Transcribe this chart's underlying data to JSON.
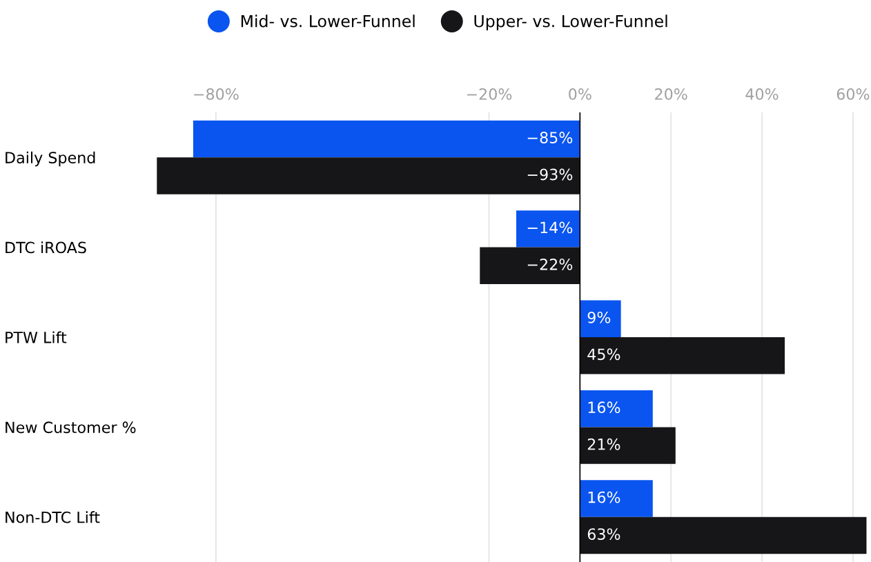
{
  "chart_data": {
    "type": "bar",
    "orientation": "horizontal",
    "categories": [
      "Daily Spend",
      "DTC iROAS",
      "PTW Lift",
      "New Customer %",
      "Non-DTC Lift"
    ],
    "series": [
      {
        "name": "Mid- vs. Lower-Funnel",
        "color": "#0a55f0",
        "values": [
          -85,
          -14,
          9,
          16,
          16
        ],
        "value_labels": [
          "−85%",
          "−14%",
          "9%",
          "16%",
          "16%"
        ]
      },
      {
        "name": "Upper- vs. Lower-Funnel",
        "color": "#161618",
        "values": [
          -93,
          -22,
          45,
          21,
          63
        ],
        "value_labels": [
          "−93%",
          "−22%",
          "45%",
          "21%",
          "63%"
        ]
      }
    ],
    "xlim": [
      -93,
      63
    ],
    "xticks": [
      {
        "value": -80,
        "label": "−80%"
      },
      {
        "value": -20,
        "label": "−20%"
      },
      {
        "value": 0,
        "label": "0%"
      },
      {
        "value": 20,
        "label": "20%"
      },
      {
        "value": 40,
        "label": "40%"
      },
      {
        "value": 60,
        "label": "60%"
      }
    ],
    "grid": "x",
    "legend": "top"
  }
}
